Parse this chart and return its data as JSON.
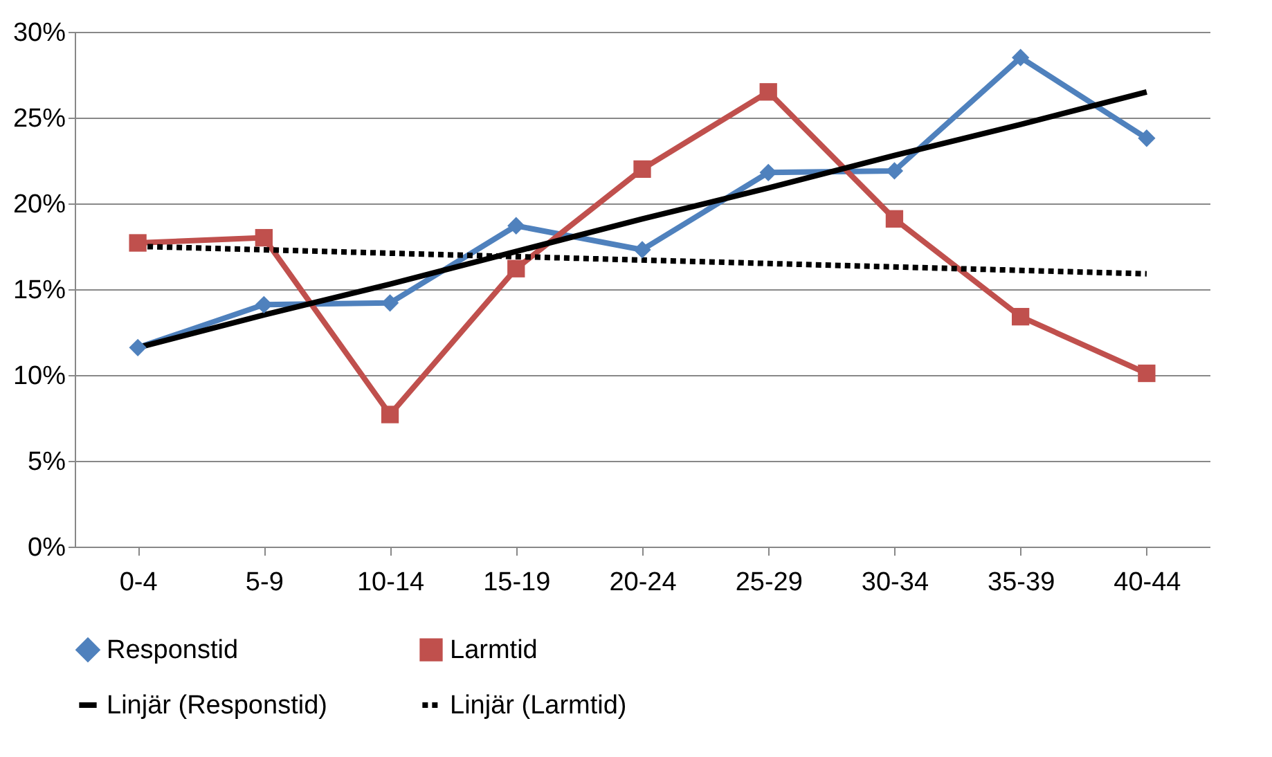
{
  "chart_data": {
    "type": "line",
    "categories": [
      "0-4",
      "5-9",
      "10-14",
      "15-19",
      "20-24",
      "25-29",
      "30-34",
      "35-39",
      "40-44"
    ],
    "series": [
      {
        "name": "Responstid",
        "color": "#4f81bd",
        "marker": "diamond",
        "line_style": "solid",
        "values": [
          11.6,
          14.1,
          14.2,
          18.7,
          17.3,
          21.8,
          21.9,
          28.5,
          23.8
        ]
      },
      {
        "name": "Larmtid",
        "color": "#c0504d",
        "marker": "square",
        "line_style": "solid",
        "values": [
          17.7,
          18.0,
          7.7,
          16.2,
          22.0,
          26.5,
          19.1,
          13.4,
          10.1
        ]
      },
      {
        "name": "Linjär (Responstid)",
        "color": "#000000",
        "marker": "none",
        "line_style": "solid",
        "values": [
          11.6,
          13.5,
          15.3,
          17.2,
          19.1,
          20.9,
          22.8,
          24.6,
          26.5
        ]
      },
      {
        "name": "Linjär (Larmtid)",
        "color": "#000000",
        "marker": "none",
        "line_style": "dashed",
        "values": [
          17.5,
          17.3,
          17.1,
          16.9,
          16.7,
          16.5,
          16.3,
          16.1,
          15.9
        ]
      }
    ],
    "ylim": [
      0,
      30
    ],
    "yticks": [
      {
        "value": 0,
        "label": "0%"
      },
      {
        "value": 5,
        "label": "5%"
      },
      {
        "value": 10,
        "label": "10%"
      },
      {
        "value": 15,
        "label": "15%"
      },
      {
        "value": 20,
        "label": "20%"
      },
      {
        "value": 25,
        "label": "25%"
      },
      {
        "value": 30,
        "label": "30%"
      }
    ],
    "grid": "y",
    "legend": "bottom"
  }
}
